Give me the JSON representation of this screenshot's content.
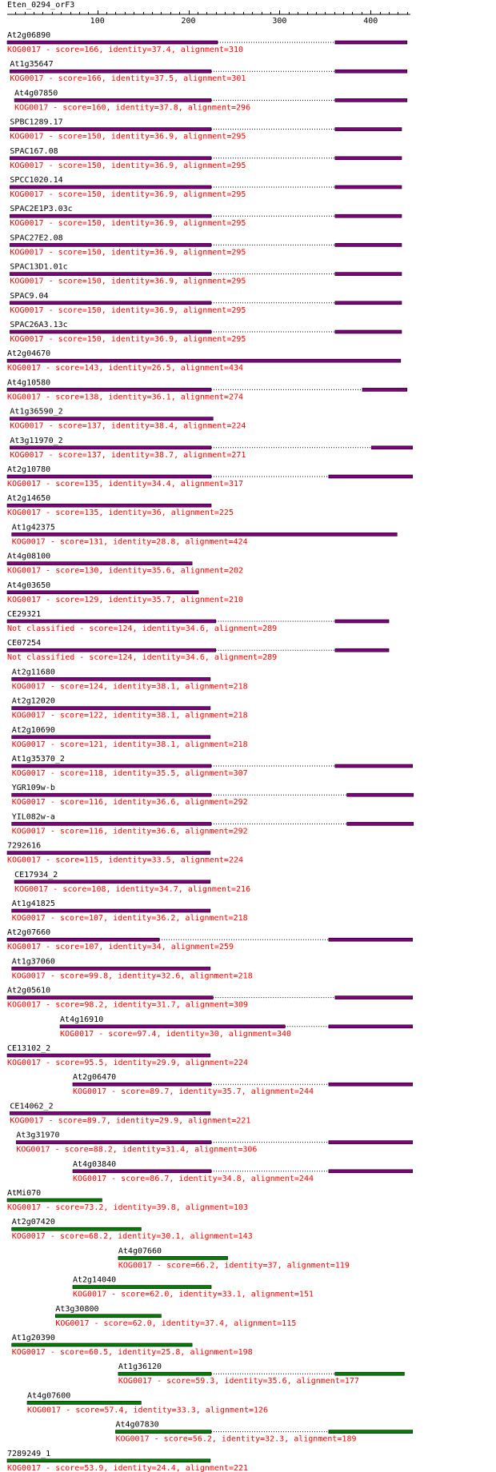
{
  "title": "Eten_0294_orF3",
  "colors": {
    "purple": "#800080",
    "green": "#008000",
    "line": "#000000",
    "text": "#000000",
    "desc": "#ff0000"
  },
  "chart_data": {
    "type": "alignment-track",
    "x_range": [
      1,
      440
    ],
    "ticks": [
      100,
      200,
      300,
      400
    ],
    "hits": [
      {
        "name": "At2g06890",
        "desc": "KOG0017 - score=166, identity=37.4, alignment=310",
        "segs": [
          [
            1,
            232
          ],
          [
            361,
            440
          ]
        ],
        "color": "purple"
      },
      {
        "name": "At1g35647",
        "desc": "KOG0017 - score=166, identity=37.5, alignment=301",
        "segs": [
          [
            4,
            225
          ],
          [
            361,
            440
          ]
        ],
        "color": "purple"
      },
      {
        "name": "At4g07850",
        "desc": "KOG0017 - score=160, identity=37.8, alignment=296",
        "segs": [
          [
            9,
            225
          ],
          [
            361,
            440
          ]
        ],
        "color": "purple"
      },
      {
        "name": "SPBC1289.17",
        "desc": "KOG0017 - score=150, identity=36.9, alignment=295",
        "segs": [
          [
            4,
            225
          ],
          [
            361,
            434
          ]
        ],
        "color": "purple"
      },
      {
        "name": "SPAC167.08",
        "desc": "KOG0017 - score=150, identity=36.9, alignment=295",
        "segs": [
          [
            4,
            225
          ],
          [
            361,
            434
          ]
        ],
        "color": "purple"
      },
      {
        "name": "SPCC1020.14",
        "desc": "KOG0017 - score=150, identity=36.9, alignment=295",
        "segs": [
          [
            4,
            225
          ],
          [
            361,
            434
          ]
        ],
        "color": "purple"
      },
      {
        "name": "SPAC2E1P3.03c",
        "desc": "KOG0017 - score=150, identity=36.9, alignment=295",
        "segs": [
          [
            4,
            225
          ],
          [
            361,
            434
          ]
        ],
        "color": "purple"
      },
      {
        "name": "SPAC27E2.08",
        "desc": "KOG0017 - score=150, identity=36.9, alignment=295",
        "segs": [
          [
            4,
            225
          ],
          [
            361,
            434
          ]
        ],
        "color": "purple"
      },
      {
        "name": "SPAC13D1.01c",
        "desc": "KOG0017 - score=150, identity=36.9, alignment=295",
        "segs": [
          [
            4,
            225
          ],
          [
            361,
            434
          ]
        ],
        "color": "purple"
      },
      {
        "name": "SPAC9.04",
        "desc": "KOG0017 - score=150, identity=36.9, alignment=295",
        "segs": [
          [
            4,
            225
          ],
          [
            361,
            434
          ]
        ],
        "color": "purple"
      },
      {
        "name": "SPAC26A3.13c",
        "desc": "KOG0017 - score=150, identity=36.9, alignment=295",
        "segs": [
          [
            4,
            225
          ],
          [
            361,
            434
          ]
        ],
        "color": "purple"
      },
      {
        "name": "At2g04670",
        "desc": "KOG0017 - score=143, identity=26.5, alignment=434",
        "segs": [
          [
            1,
            433
          ]
        ],
        "color": "purple"
      },
      {
        "name": "At4g10580",
        "desc": "KOG0017 - score=138, identity=36.1, alignment=274",
        "segs": [
          [
            1,
            225
          ],
          [
            391,
            440
          ]
        ],
        "color": "purple"
      },
      {
        "name": "At1g36590_2",
        "desc": "KOG0017 - score=137, identity=38.4, alignment=224",
        "segs": [
          [
            4,
            227
          ]
        ],
        "color": "purple"
      },
      {
        "name": "At3g11970_2",
        "desc": "KOG0017 - score=137, identity=38.7, alignment=271",
        "segs": [
          [
            4,
            225
          ],
          [
            401,
            446
          ]
        ],
        "color": "purple"
      },
      {
        "name": "At2g10780",
        "desc": "KOG0017 - score=135, identity=34.4, alignment=317",
        "segs": [
          [
            1,
            225
          ],
          [
            354,
            446
          ]
        ],
        "color": "purple"
      },
      {
        "name": "At2g14650",
        "desc": "KOG0017 - score=135, identity=36, alignment=225",
        "segs": [
          [
            1,
            225
          ]
        ],
        "color": "purple"
      },
      {
        "name": "At1g42375",
        "desc": "KOG0017 - score=131, identity=28.8, alignment=424",
        "segs": [
          [
            6,
            429
          ]
        ],
        "color": "purple"
      },
      {
        "name": "At4g08100",
        "desc": "KOG0017 - score=130, identity=35.6, alignment=202",
        "segs": [
          [
            1,
            204
          ]
        ],
        "color": "purple"
      },
      {
        "name": "At4g03650",
        "desc": "KOG0017 - score=129, identity=35.7, alignment=210",
        "segs": [
          [
            1,
            211
          ]
        ],
        "color": "purple"
      },
      {
        "name": "CE29321",
        "desc": "Not classified - score=124, identity=34.6, alignment=289",
        "segs": [
          [
            1,
            230
          ],
          [
            361,
            420
          ]
        ],
        "color": "purple"
      },
      {
        "name": "CE07254",
        "desc": "Not classified - score=124, identity=34.6, alignment=289",
        "segs": [
          [
            1,
            230
          ],
          [
            361,
            420
          ]
        ],
        "color": "purple"
      },
      {
        "name": "At2g11680",
        "desc": "KOG0017 - score=124, identity=38.1, alignment=218",
        "segs": [
          [
            6,
            224
          ]
        ],
        "color": "purple"
      },
      {
        "name": "At2g12020",
        "desc": "KOG0017 - score=122, identity=38.1, alignment=218",
        "segs": [
          [
            6,
            224
          ]
        ],
        "color": "purple"
      },
      {
        "name": "At2g10690",
        "desc": "KOG0017 - score=121, identity=38.1, alignment=218",
        "segs": [
          [
            6,
            224
          ]
        ],
        "color": "purple"
      },
      {
        "name": "At1g35370_2",
        "desc": "KOG0017 - score=118, identity=35.5, alignment=307",
        "segs": [
          [
            6,
            225
          ],
          [
            361,
            446
          ]
        ],
        "color": "purple"
      },
      {
        "name": "YGR109w-b",
        "desc": "KOG0017 - score=116, identity=36.6, alignment=292",
        "segs": [
          [
            6,
            225
          ],
          [
            374,
            447
          ]
        ],
        "color": "purple"
      },
      {
        "name": "YIL082w-a",
        "desc": "KOG0017 - score=116, identity=36.6, alignment=292",
        "segs": [
          [
            6,
            225
          ],
          [
            374,
            447
          ]
        ],
        "color": "purple"
      },
      {
        "name": "7292616",
        "desc": "KOG0017 - score=115, identity=33.5, alignment=224",
        "segs": [
          [
            1,
            224
          ]
        ],
        "color": "purple"
      },
      {
        "name": "CE17934_2",
        "desc": "KOG0017 - score=108, identity=34.7, alignment=216",
        "segs": [
          [
            9,
            224
          ]
        ],
        "color": "purple"
      },
      {
        "name": "At1g41825",
        "desc": "KOG0017 - score=107, identity=36.2, alignment=218",
        "segs": [
          [
            6,
            224
          ]
        ],
        "color": "purple"
      },
      {
        "name": "At2g07660",
        "desc": "KOG0017 - score=107, identity=34, alignment=259",
        "segs": [
          [
            1,
            168
          ],
          [
            354,
            446
          ]
        ],
        "color": "purple"
      },
      {
        "name": "At1g37060",
        "desc": "KOG0017 - score=99.8, identity=32.6, alignment=218",
        "segs": [
          [
            6,
            224
          ]
        ],
        "color": "purple"
      },
      {
        "name": "At2g05610",
        "desc": "KOG0017 - score=98.2, identity=31.7, alignment=309",
        "segs": [
          [
            1,
            227
          ],
          [
            361,
            446
          ]
        ],
        "color": "purple"
      },
      {
        "name": "At4g16910",
        "desc": "KOG0017 - score=97.4, identity=30, alignment=340",
        "segs": [
          [
            59,
            306
          ],
          [
            354,
            446
          ]
        ],
        "color": "purple"
      },
      {
        "name": "CE13102_2",
        "desc": "KOG0017 - score=95.5, identity=29.9, alignment=224",
        "segs": [
          [
            1,
            224
          ]
        ],
        "color": "purple"
      },
      {
        "name": "At2g06470",
        "desc": "KOG0017 - score=89.7, identity=35.7, alignment=244",
        "segs": [
          [
            73,
            225
          ],
          [
            354,
            446
          ]
        ],
        "color": "purple"
      },
      {
        "name": "CE14062_2",
        "desc": "KOG0017 - score=89.7, identity=29.9, alignment=221",
        "segs": [
          [
            4,
            224
          ]
        ],
        "color": "purple"
      },
      {
        "name": "At3g31970",
        "desc": "KOG0017 - score=88.2, identity=31.4, alignment=306",
        "segs": [
          [
            11,
            225
          ],
          [
            354,
            446
          ]
        ],
        "color": "purple"
      },
      {
        "name": "At4g03840",
        "desc": "KOG0017 - score=86.7, identity=34.8, alignment=244",
        "segs": [
          [
            73,
            225
          ],
          [
            354,
            446
          ]
        ],
        "color": "purple"
      },
      {
        "name": "AtMi070",
        "desc": "KOG0017 - score=73.2, identity=39.8, alignment=103",
        "segs": [
          [
            1,
            105
          ]
        ],
        "color": "green"
      },
      {
        "name": "At2g07420",
        "desc": "KOG0017 - score=68.2, identity=30.1, alignment=143",
        "segs": [
          [
            6,
            148
          ]
        ],
        "color": "green"
      },
      {
        "name": "At4g07660",
        "desc": "KOG0017 - score=66.2, identity=37, alignment=119",
        "segs": [
          [
            123,
            243
          ]
        ],
        "color": "green"
      },
      {
        "name": "At2g14040",
        "desc": "KOG0017 - score=62.0, identity=33.1, alignment=151",
        "segs": [
          [
            73,
            225
          ]
        ],
        "color": "green"
      },
      {
        "name": "At3g30800",
        "desc": "KOG0017 - score=62.0, identity=37.4, alignment=115",
        "segs": [
          [
            54,
            170
          ]
        ],
        "color": "green"
      },
      {
        "name": "At1g20390",
        "desc": "KOG0017 - score=60.5, identity=25.8, alignment=198",
        "segs": [
          [
            6,
            204
          ]
        ],
        "color": "green"
      },
      {
        "name": "At1g36120",
        "desc": "KOG0017 - score=59.3, identity=35.6, alignment=177",
        "segs": [
          [
            123,
            225
          ],
          [
            361,
            437
          ]
        ],
        "color": "green"
      },
      {
        "name": "At4g07600",
        "desc": "KOG0017 - score=57.4, identity=33.3, alignment=126",
        "segs": [
          [
            23,
            148
          ]
        ],
        "color": "green"
      },
      {
        "name": "At4g07830",
        "desc": "KOG0017 - score=56.2, identity=32.3, alignment=189",
        "segs": [
          [
            120,
            225
          ],
          [
            354,
            446
          ]
        ],
        "color": "green"
      },
      {
        "name": "7289249_1",
        "desc": "KOG0017 - score=53.9, identity=24.4, alignment=221",
        "segs": [
          [
            1,
            224
          ]
        ],
        "color": "green"
      }
    ]
  }
}
